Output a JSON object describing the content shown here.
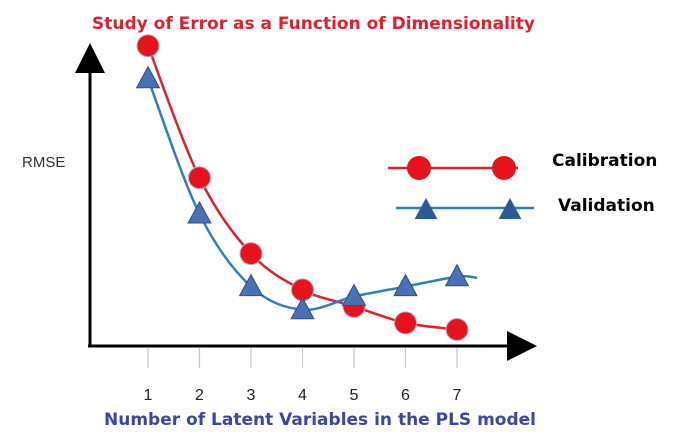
{
  "chart_data": {
    "type": "line",
    "title": "Study of Error as a Function of Dimensionality",
    "xlabel": "Number of Latent Variables in the PLS model",
    "ylabel": "RMSE",
    "x": [
      1,
      2,
      3,
      4,
      5,
      6,
      7
    ],
    "ylim": [
      0,
      1
    ],
    "grid": false,
    "legend_position": "right",
    "series": [
      {
        "name": "Calibration",
        "marker": "circle",
        "color": "#e8121c",
        "line_color": "#e0202a",
        "values": [
          0.91,
          0.51,
          0.28,
          0.17,
          0.12,
          0.07,
          0.05
        ]
      },
      {
        "name": "Validation",
        "marker": "triangle",
        "color": "#4a70b4",
        "line_color": "#2f7fc0",
        "values": [
          0.81,
          0.4,
          0.18,
          0.11,
          0.15,
          0.18,
          0.21
        ]
      }
    ]
  },
  "colors": {
    "title": "#e41e2a",
    "xlabel": "#3a46a8",
    "axis": "#000000"
  }
}
